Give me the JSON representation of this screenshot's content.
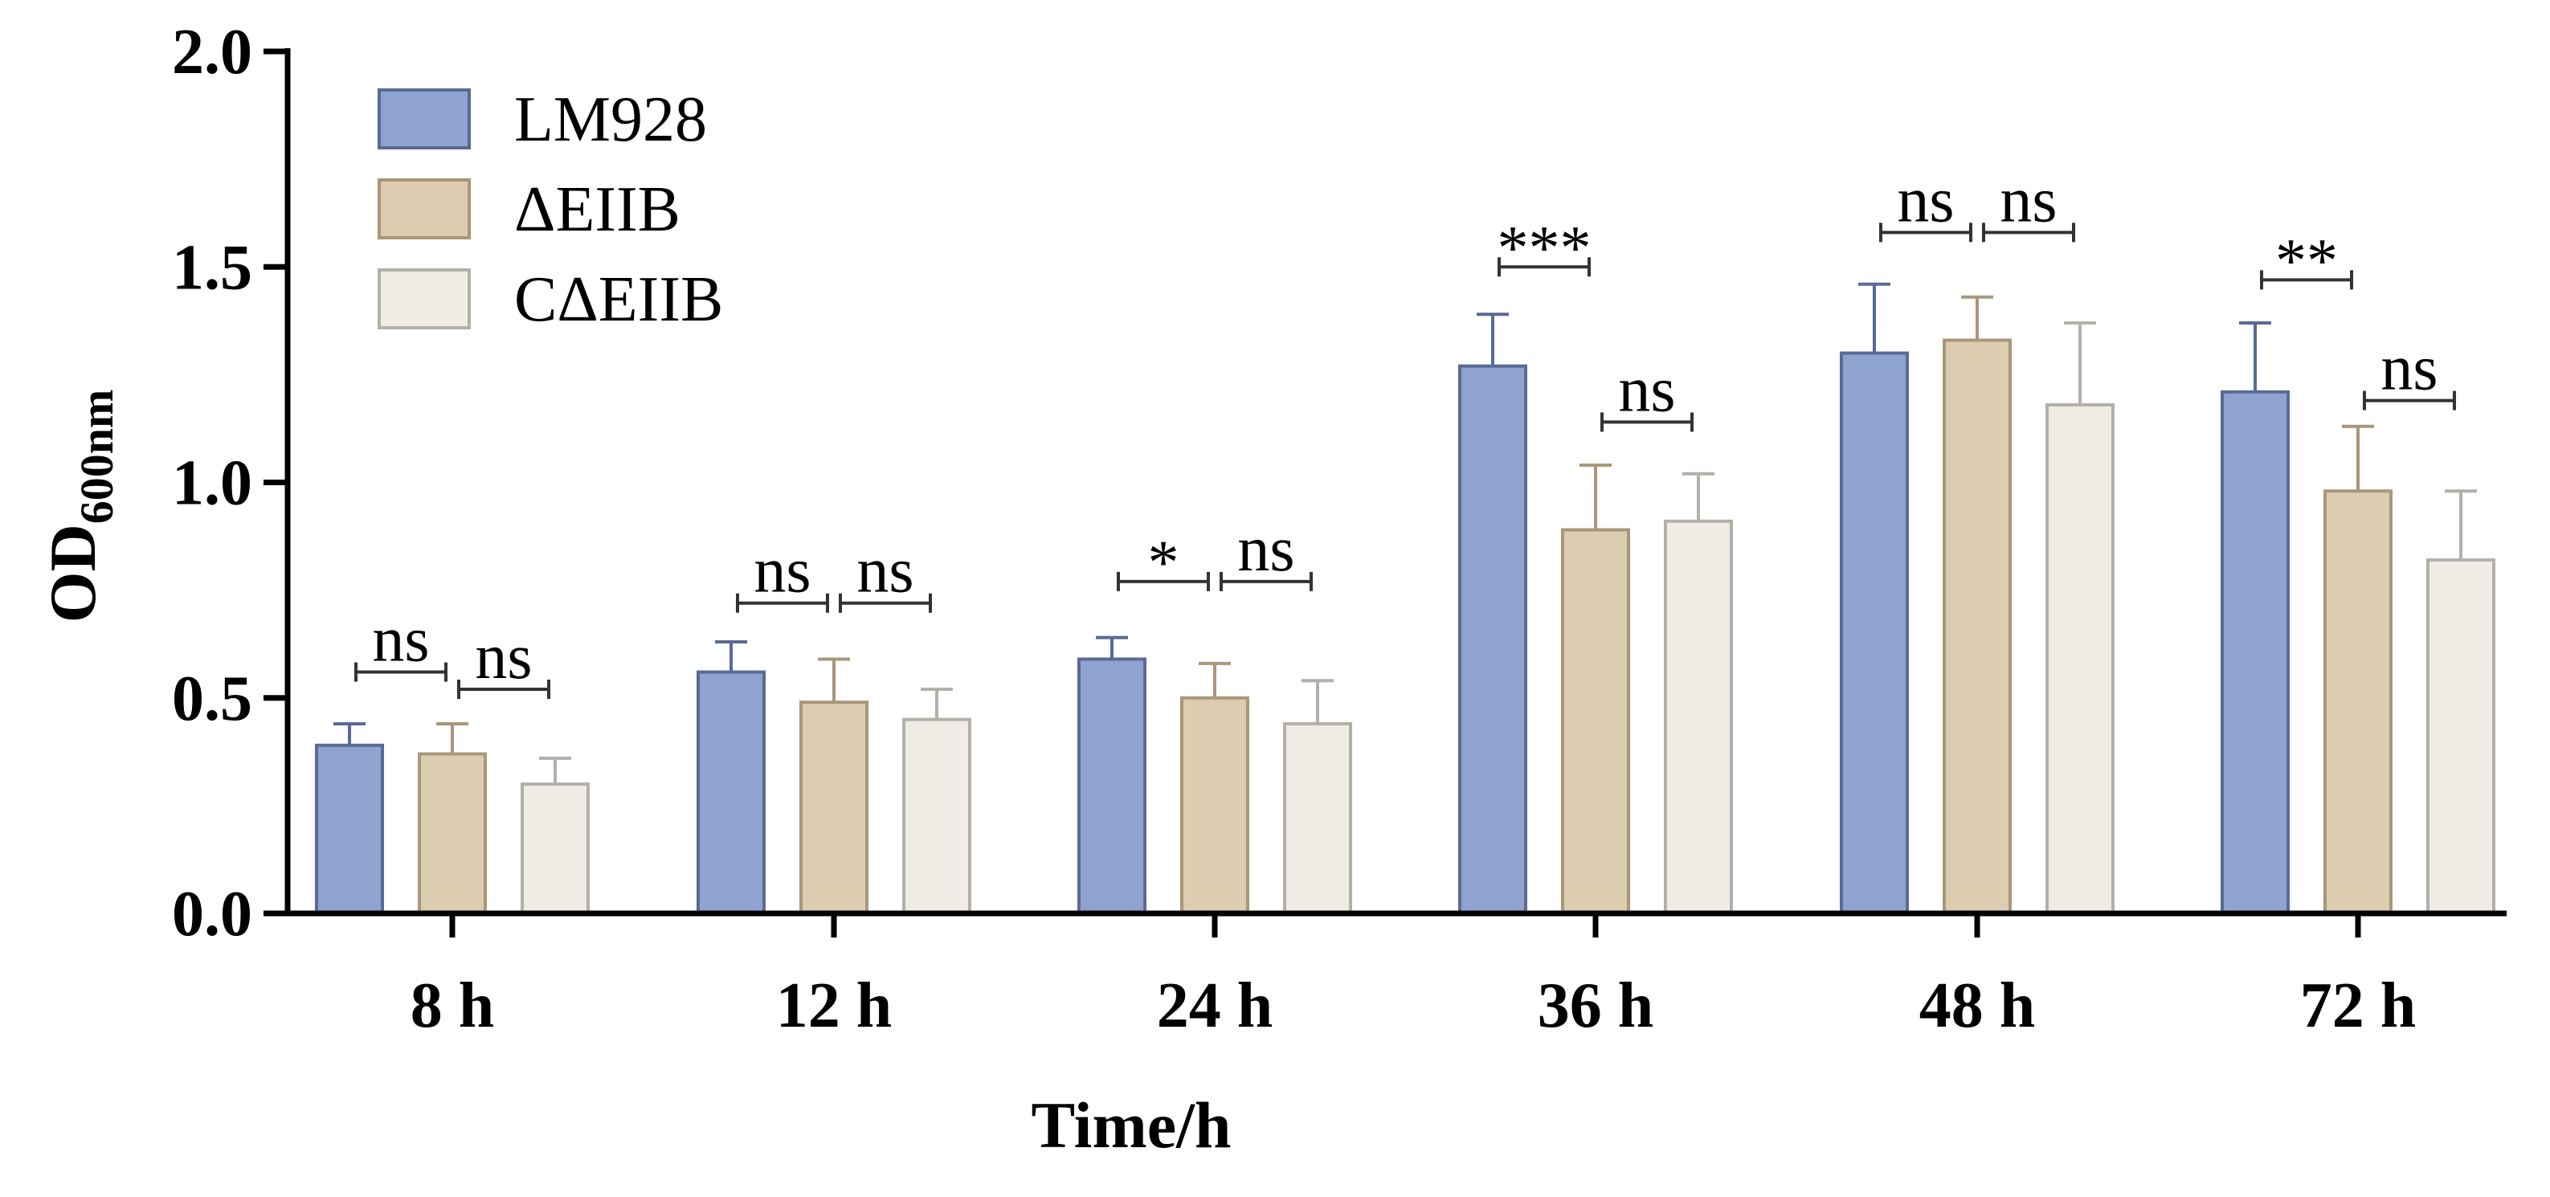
{
  "chart_data": {
    "type": "bar",
    "title": "",
    "xlabel": "Time/h",
    "ylabel_main": "OD",
    "ylabel_sub": "600nm",
    "ylim": [
      0,
      2.0
    ],
    "yticks": [
      0.0,
      0.5,
      1.0,
      1.5,
      2.0
    ],
    "ytick_labels": [
      "0.0",
      "0.5",
      "1.0",
      "1.5",
      "2.0"
    ],
    "categories": [
      "8 h",
      "12 h",
      "24 h",
      "36 h",
      "48 h",
      "72 h"
    ],
    "legend_position": "top-left",
    "series": [
      {
        "name": "LM928",
        "color": "#8fa3d1",
        "edge": "#5a6a96",
        "values": [
          0.39,
          0.56,
          0.59,
          1.27,
          1.3,
          1.21
        ],
        "errors": [
          0.05,
          0.07,
          0.05,
          0.12,
          0.16,
          0.16
        ]
      },
      {
        "name": "ΔEIIB",
        "color": "#dccdb1",
        "edge": "#a8977a",
        "values": [
          0.37,
          0.49,
          0.5,
          0.89,
          1.33,
          0.98
        ],
        "errors": [
          0.07,
          0.1,
          0.08,
          0.15,
          0.1,
          0.15
        ]
      },
      {
        "name": "CΔEIIB",
        "color": "#efece6",
        "edge": "#b3b0aa",
        "values": [
          0.3,
          0.45,
          0.44,
          0.91,
          1.18,
          0.82
        ],
        "errors": [
          0.06,
          0.07,
          0.1,
          0.11,
          0.19,
          0.16
        ]
      }
    ],
    "significance": [
      {
        "group": 0,
        "left": [
          {
            "from": 0,
            "to": 1,
            "label": "ns",
            "y": 0.56
          },
          {
            "from": 1,
            "to": 2,
            "label": "ns",
            "y": 0.52
          }
        ]
      },
      {
        "group": 1,
        "left": [
          {
            "from": 0,
            "to": 1,
            "label": "ns",
            "y": 0.72
          },
          {
            "from": 1,
            "to": 2,
            "label": "ns",
            "y": 0.72
          }
        ]
      },
      {
        "group": 2,
        "left": [
          {
            "from": 0,
            "to": 1,
            "label": "*",
            "y": 0.77
          },
          {
            "from": 1,
            "to": 2,
            "label": "ns",
            "y": 0.77
          }
        ]
      },
      {
        "group": 3,
        "left": [
          {
            "from": 0,
            "to": 1,
            "label": "***",
            "y": 1.5
          },
          {
            "from": 1,
            "to": 2,
            "label": "ns",
            "y": 1.14
          }
        ]
      },
      {
        "group": 4,
        "left": [
          {
            "from": 0,
            "to": 1,
            "label": "ns",
            "y": 1.58
          },
          {
            "from": 1,
            "to": 2,
            "label": "ns",
            "y": 1.58
          }
        ]
      },
      {
        "group": 5,
        "left": [
          {
            "from": 0,
            "to": 1,
            "label": "**",
            "y": 1.47
          },
          {
            "from": 1,
            "to": 2,
            "label": "ns",
            "y": 1.19
          }
        ]
      }
    ]
  }
}
